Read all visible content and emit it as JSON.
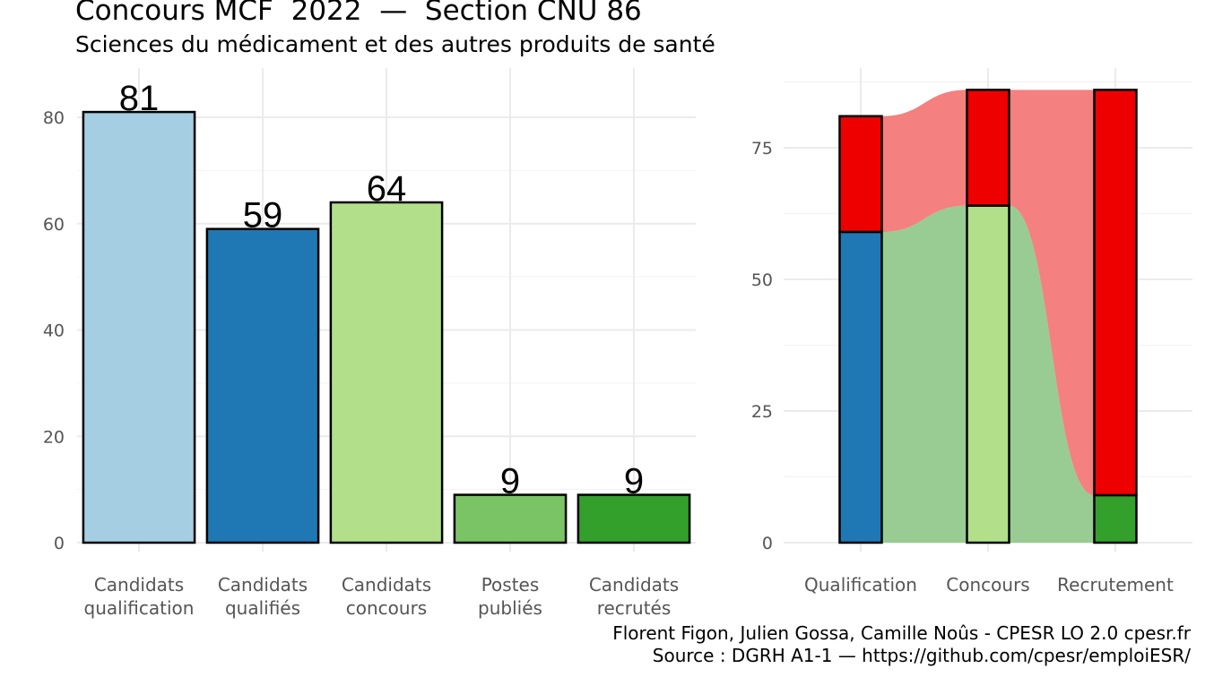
{
  "title": "Concours MCF  2022  —  Section CNU 86",
  "subtitle": "Sciences du médicament et des autres produits de santé",
  "caption_line1": "Florent Figon, Julien Gossa, Camille Noûs - CPESR LO 2.0 cpesr.fr",
  "caption_line2": "Source : DGRH A1-1 — https://github.com/cpesr/emploiESR/",
  "chart_data": [
    {
      "type": "bar",
      "categories": [
        [
          "Candidats",
          "qualification"
        ],
        [
          "Candidats",
          "qualifiés"
        ],
        [
          "Candidats",
          "concours"
        ],
        [
          "Postes",
          "publiés"
        ],
        [
          "Candidats",
          "recrutés"
        ]
      ],
      "values": [
        81,
        59,
        64,
        9,
        9
      ],
      "data_labels": [
        "81",
        "59",
        "64",
        "9",
        "9"
      ],
      "colors": [
        "#a6cee3",
        "#1f78b4",
        "#b2df8a",
        "#7bc465",
        "#33a02c"
      ],
      "ylim": [
        0,
        86
      ],
      "yticks": [
        0,
        20,
        40,
        60,
        80
      ],
      "grid": true
    },
    {
      "type": "area",
      "subtype": "alluvial",
      "categories": [
        "Qualification",
        "Concours",
        "Recrutement"
      ],
      "stacks": [
        {
          "bottom": 59,
          "bottom_color": "#1f78b4",
          "total": 81
        },
        {
          "bottom": 64,
          "bottom_color": "#b2df8a",
          "total": 86
        },
        {
          "bottom": 9,
          "bottom_color": "#33a02c",
          "total": 86
        }
      ],
      "top_color": "#ee0000",
      "flow_colors": {
        "bottom": "#99cc92",
        "top": "#f48080"
      },
      "ylim": [
        0,
        89
      ],
      "yticks": [
        0,
        25,
        50,
        75
      ],
      "grid": true
    }
  ]
}
